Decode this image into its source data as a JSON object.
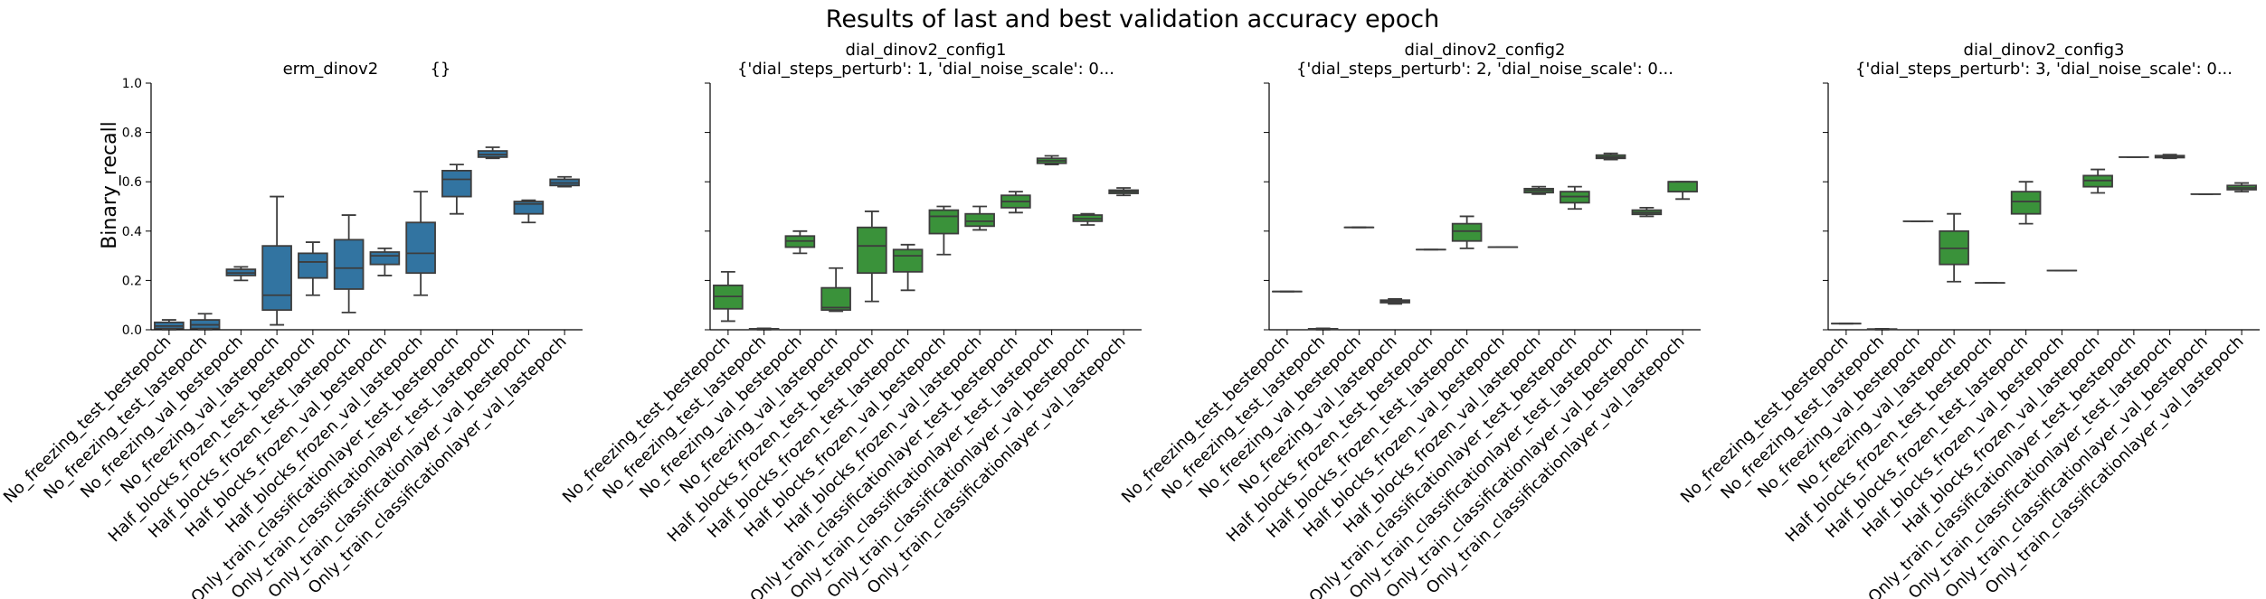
{
  "chart_data": {
    "type": "box",
    "suptitle": "Results of last and best validation accuracy epoch",
    "ylabel": "Binary_recall",
    "ylim": [
      0.0,
      1.0
    ],
    "yticks": [
      "0.0",
      "0.2",
      "0.4",
      "0.6",
      "0.8",
      "1.0"
    ],
    "colors": {
      "blue": "#3274a1",
      "green": "#3a923a",
      "line": "#3d3d3d"
    },
    "categories": [
      "No_freezing_test_bestepoch",
      "No_freezing_test_lastepoch",
      "No_freezing_val_bestepoch",
      "No_freezing_val_lastepoch",
      "Half_blocks_frozen_test_bestepoch",
      "Half_blocks_frozen_test_lastepoch",
      "Half_blocks_frozen_val_bestepoch",
      "Half_blocks_frozen_val_lastepoch",
      "Only_train_classificationlayer_test_bestepoch",
      "Only_train_classificationlayer_test_lastepoch",
      "Only_train_classificationlayer_val_bestepoch",
      "Only_train_classificationlayer_val_lastepoch"
    ],
    "panels": [
      {
        "title_line1": "erm_dinov2          {}",
        "title_line2": "",
        "color": "blue",
        "boxes": [
          {
            "min": 0.0,
            "q1": 0.005,
            "med": 0.015,
            "q3": 0.03,
            "max": 0.04
          },
          {
            "min": 0.0,
            "q1": 0.005,
            "med": 0.02,
            "q3": 0.04,
            "max": 0.065
          },
          {
            "min": 0.2,
            "q1": 0.22,
            "med": 0.23,
            "q3": 0.245,
            "max": 0.255
          },
          {
            "min": 0.02,
            "q1": 0.08,
            "med": 0.14,
            "q3": 0.34,
            "max": 0.54
          },
          {
            "min": 0.14,
            "q1": 0.21,
            "med": 0.275,
            "q3": 0.31,
            "max": 0.355
          },
          {
            "min": 0.07,
            "q1": 0.165,
            "med": 0.25,
            "q3": 0.365,
            "max": 0.465
          },
          {
            "min": 0.22,
            "q1": 0.265,
            "med": 0.3,
            "q3": 0.315,
            "max": 0.33
          },
          {
            "min": 0.14,
            "q1": 0.23,
            "med": 0.31,
            "q3": 0.435,
            "max": 0.56
          },
          {
            "min": 0.47,
            "q1": 0.54,
            "med": 0.61,
            "q3": 0.645,
            "max": 0.67
          },
          {
            "min": 0.695,
            "q1": 0.7,
            "med": 0.71,
            "q3": 0.725,
            "max": 0.74
          },
          {
            "min": 0.435,
            "q1": 0.47,
            "med": 0.51,
            "q3": 0.52,
            "max": 0.525
          },
          {
            "min": 0.58,
            "q1": 0.585,
            "med": 0.595,
            "q3": 0.61,
            "max": 0.62
          }
        ]
      },
      {
        "title_line1": "dial_dinov2_config1",
        "title_line2": "{'dial_steps_perturb': 1, 'dial_noise_scale': 0...",
        "color": "green",
        "boxes": [
          {
            "min": 0.035,
            "q1": 0.085,
            "med": 0.135,
            "q3": 0.18,
            "max": 0.235
          },
          {
            "min": 0.0,
            "q1": 0.001,
            "med": 0.002,
            "q3": 0.004,
            "max": 0.006
          },
          {
            "min": 0.31,
            "q1": 0.335,
            "med": 0.36,
            "q3": 0.38,
            "max": 0.4
          },
          {
            "min": 0.075,
            "q1": 0.08,
            "med": 0.09,
            "q3": 0.17,
            "max": 0.25
          },
          {
            "min": 0.115,
            "q1": 0.23,
            "med": 0.34,
            "q3": 0.415,
            "max": 0.48
          },
          {
            "min": 0.16,
            "q1": 0.235,
            "med": 0.3,
            "q3": 0.325,
            "max": 0.345
          },
          {
            "min": 0.305,
            "q1": 0.39,
            "med": 0.46,
            "q3": 0.485,
            "max": 0.5
          },
          {
            "min": 0.405,
            "q1": 0.42,
            "med": 0.44,
            "q3": 0.47,
            "max": 0.5
          },
          {
            "min": 0.475,
            "q1": 0.495,
            "med": 0.52,
            "q3": 0.545,
            "max": 0.56
          },
          {
            "min": 0.67,
            "q1": 0.675,
            "med": 0.685,
            "q3": 0.695,
            "max": 0.705
          },
          {
            "min": 0.425,
            "q1": 0.44,
            "med": 0.45,
            "q3": 0.465,
            "max": 0.47
          },
          {
            "min": 0.545,
            "q1": 0.553,
            "med": 0.56,
            "q3": 0.566,
            "max": 0.575
          }
        ]
      },
      {
        "title_line1": "dial_dinov2_config2",
        "title_line2": "{'dial_steps_perturb': 2, 'dial_noise_scale': 0...",
        "color": "green",
        "boxes": [
          {
            "min": 0.155,
            "q1": 0.155,
            "med": 0.155,
            "q3": 0.155,
            "max": 0.155
          },
          {
            "min": 0.0,
            "q1": 0.001,
            "med": 0.002,
            "q3": 0.004,
            "max": 0.006
          },
          {
            "min": 0.415,
            "q1": 0.415,
            "med": 0.415,
            "q3": 0.415,
            "max": 0.415
          },
          {
            "min": 0.105,
            "q1": 0.11,
            "med": 0.115,
            "q3": 0.12,
            "max": 0.125
          },
          {
            "min": 0.325,
            "q1": 0.325,
            "med": 0.325,
            "q3": 0.325,
            "max": 0.325
          },
          {
            "min": 0.33,
            "q1": 0.36,
            "med": 0.4,
            "q3": 0.43,
            "max": 0.46
          },
          {
            "min": 0.335,
            "q1": 0.335,
            "med": 0.335,
            "q3": 0.335,
            "max": 0.335
          },
          {
            "min": 0.55,
            "q1": 0.556,
            "med": 0.565,
            "q3": 0.572,
            "max": 0.58
          },
          {
            "min": 0.49,
            "q1": 0.515,
            "med": 0.54,
            "q3": 0.56,
            "max": 0.58
          },
          {
            "min": 0.69,
            "q1": 0.695,
            "med": 0.7,
            "q3": 0.708,
            "max": 0.715
          },
          {
            "min": 0.46,
            "q1": 0.468,
            "med": 0.475,
            "q3": 0.485,
            "max": 0.495
          },
          {
            "min": 0.53,
            "q1": 0.56,
            "med": 0.6,
            "q3": 0.6,
            "max": 0.6
          }
        ]
      },
      {
        "title_line1": "dial_dinov2_config3",
        "title_line2": "{'dial_steps_perturb': 3, 'dial_noise_scale': 0...",
        "color": "green",
        "boxes": [
          {
            "min": 0.025,
            "q1": 0.025,
            "med": 0.025,
            "q3": 0.025,
            "max": 0.025
          },
          {
            "min": 0.0,
            "q1": 0.001,
            "med": 0.002,
            "q3": 0.003,
            "max": 0.004
          },
          {
            "min": 0.44,
            "q1": 0.44,
            "med": 0.44,
            "q3": 0.44,
            "max": 0.44
          },
          {
            "min": 0.195,
            "q1": 0.265,
            "med": 0.33,
            "q3": 0.4,
            "max": 0.47
          },
          {
            "min": 0.19,
            "q1": 0.19,
            "med": 0.19,
            "q3": 0.19,
            "max": 0.19
          },
          {
            "min": 0.43,
            "q1": 0.47,
            "med": 0.52,
            "q3": 0.56,
            "max": 0.6
          },
          {
            "min": 0.24,
            "q1": 0.24,
            "med": 0.24,
            "q3": 0.24,
            "max": 0.24
          },
          {
            "min": 0.555,
            "q1": 0.58,
            "med": 0.605,
            "q3": 0.625,
            "max": 0.65
          },
          {
            "min": 0.7,
            "q1": 0.7,
            "med": 0.7,
            "q3": 0.7,
            "max": 0.7
          },
          {
            "min": 0.695,
            "q1": 0.698,
            "med": 0.702,
            "q3": 0.706,
            "max": 0.71
          },
          {
            "min": 0.55,
            "q1": 0.55,
            "med": 0.55,
            "q3": 0.55,
            "max": 0.55
          },
          {
            "min": 0.56,
            "q1": 0.568,
            "med": 0.575,
            "q3": 0.585,
            "max": 0.595
          }
        ]
      }
    ]
  }
}
